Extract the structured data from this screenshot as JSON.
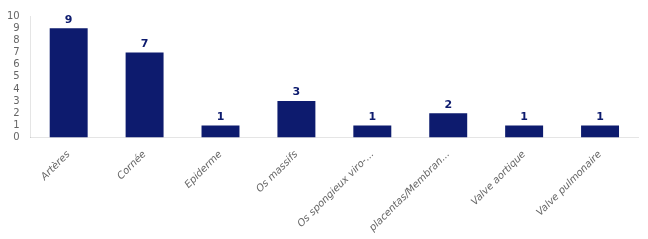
{
  "chart_data": {
    "type": "bar",
    "categories": [
      "Artères",
      "Cornée",
      "Epiderme",
      "Os massifs",
      "Os spongieux viro-...",
      "placentas/Membran...",
      "Valve aortique",
      "Valve pulmonaire"
    ],
    "values": [
      9,
      7,
      1,
      3,
      1,
      2,
      1,
      1
    ],
    "color": "#0D1B6E",
    "ylim": [
      0,
      10
    ],
    "yticks": [
      0,
      1,
      2,
      3,
      4,
      5,
      6,
      7,
      8,
      9,
      10
    ],
    "grid": false,
    "data_labels": true
  }
}
